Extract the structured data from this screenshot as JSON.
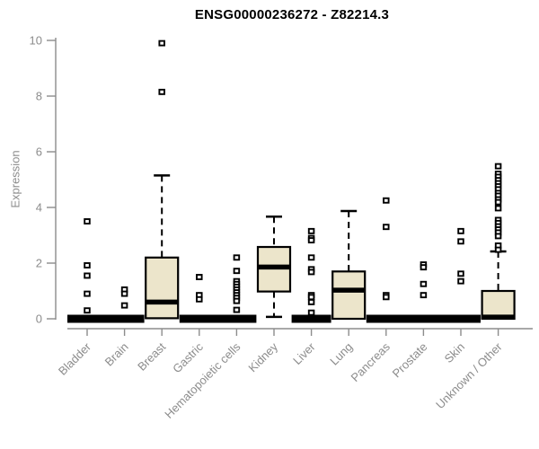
{
  "title": "ENSG00000236272 - Z82214.3",
  "chart_data": {
    "type": "boxplot",
    "title": "ENSG00000236272 - Z82214.3",
    "xlabel": "",
    "ylabel": "Expression",
    "ylim": [
      0,
      10
    ],
    "yticks": [
      0,
      2,
      4,
      6,
      8,
      10
    ],
    "grid": false,
    "legend": "none",
    "categories": [
      "Bladder",
      "Brain",
      "Breast",
      "Gastric",
      "Hematopoietic cells",
      "Kidney",
      "Liver",
      "Lung",
      "Pancreas",
      "Prostate",
      "Skin",
      "Unknown / Other"
    ],
    "boxes": [
      {
        "category": "Bladder",
        "whisker_low": 0,
        "q1": 0,
        "median": 0,
        "q3": 0,
        "whisker_high": 0,
        "outliers": [
          3.5,
          1.92,
          1.55,
          0.9,
          0.3
        ]
      },
      {
        "category": "Brain",
        "whisker_low": 0,
        "q1": 0,
        "median": 0,
        "q3": 0,
        "whisker_high": 0,
        "outliers": [
          1.05,
          0.9,
          0.48
        ]
      },
      {
        "category": "Breast",
        "whisker_low": 0.02,
        "q1": 0.02,
        "median": 0.6,
        "q3": 2.2,
        "whisker_high": 5.15,
        "outliers": [
          9.9,
          8.15
        ]
      },
      {
        "category": "Gastric",
        "whisker_low": 0,
        "q1": 0,
        "median": 0,
        "q3": 0,
        "whisker_high": 0,
        "outliers": [
          1.5,
          0.85,
          0.7
        ]
      },
      {
        "category": "Hematopoietic cells",
        "whisker_low": 0,
        "q1": 0,
        "median": 0,
        "q3": 0,
        "whisker_high": 0,
        "outliers": [
          2.2,
          1.72,
          1.35,
          1.25,
          1.15,
          1.05,
          0.95,
          0.85,
          0.75,
          0.64,
          0.32
        ]
      },
      {
        "category": "Kidney",
        "whisker_low": 0.07,
        "q1": 0.98,
        "median": 1.86,
        "q3": 2.58,
        "whisker_high": 3.67,
        "outliers": []
      },
      {
        "category": "Liver",
        "whisker_low": 0,
        "q1": 0,
        "median": 0,
        "q3": 0,
        "whisker_high": 0,
        "outliers": [
          3.15,
          2.9,
          2.82,
          2.2,
          1.78,
          1.68,
          0.85,
          0.78,
          0.6,
          0.22
        ]
      },
      {
        "category": "Lung",
        "whisker_low": 0,
        "q1": 0,
        "median": 1.03,
        "q3": 1.7,
        "whisker_high": 3.87,
        "outliers": []
      },
      {
        "category": "Pancreas",
        "whisker_low": 0,
        "q1": 0,
        "median": 0,
        "q3": 0,
        "whisker_high": 0,
        "outliers": [
          4.25,
          3.3,
          0.85,
          0.78
        ]
      },
      {
        "category": "Prostate",
        "whisker_low": 0,
        "q1": 0,
        "median": 0,
        "q3": 0,
        "whisker_high": 0,
        "outliers": [
          1.95,
          1.85,
          1.25,
          0.85
        ]
      },
      {
        "category": "Skin",
        "whisker_low": 0,
        "q1": 0,
        "median": 0,
        "q3": 0,
        "whisker_high": 0,
        "outliers": [
          3.15,
          2.78,
          1.62,
          1.35
        ]
      },
      {
        "category": "Unknown / Other",
        "whisker_low": 0,
        "q1": 0,
        "median": 0.06,
        "q3": 1.0,
        "whisker_high": 2.42,
        "outliers": [
          5.48,
          5.21,
          5.1,
          4.98,
          4.87,
          4.76,
          4.65,
          4.52,
          4.42,
          4.29,
          4.19,
          3.97,
          3.55,
          3.44,
          3.32,
          3.21,
          3.1,
          2.97,
          2.63,
          2.48
        ]
      }
    ],
    "colors": {
      "box_fill": "#ece5cb",
      "box_stroke": "#000000",
      "median": "#000000",
      "whisker": "#000000",
      "outlier_stroke": "#000000",
      "outlier_fill": "#ffffff",
      "axis": "#8c8c8c",
      "tick_label": "#8c8c8c",
      "title": "#000000"
    }
  }
}
